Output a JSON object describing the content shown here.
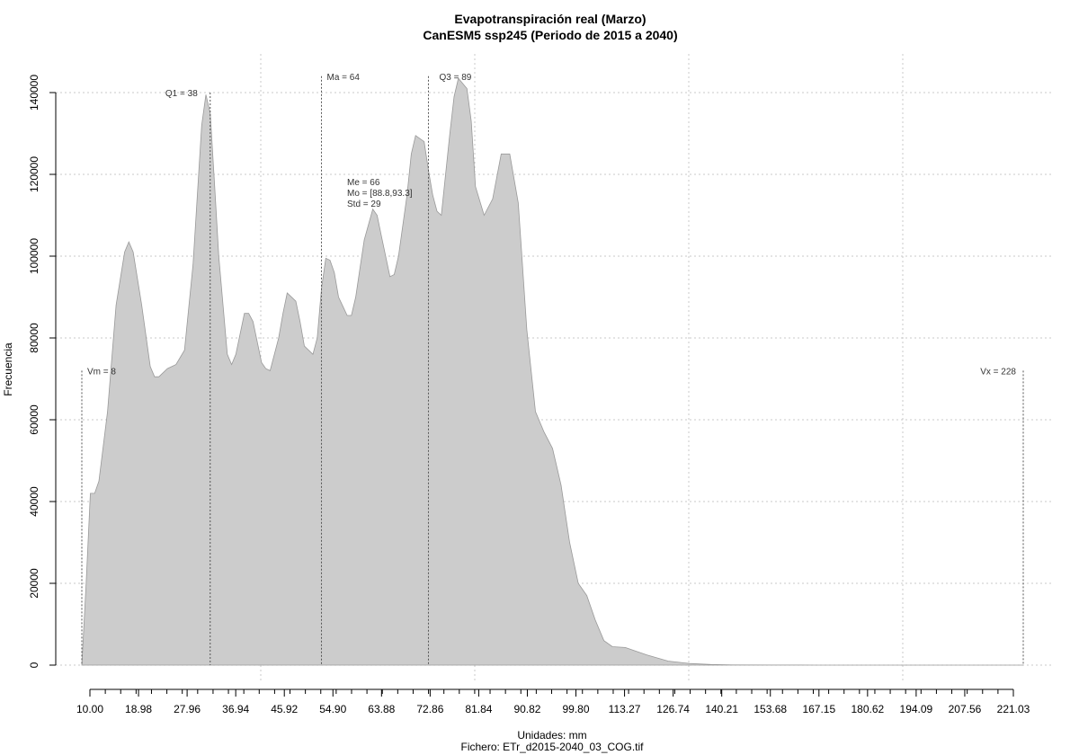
{
  "chart_data": {
    "type": "area",
    "title": "Evapotranspiración real (Marzo)",
    "subtitle": "CanESM5 ssp245 (Periodo de 2015 a 2040)",
    "xlabel": "Unidades: mm",
    "ylabel": "Frecuencia",
    "caption": "Fichero: ETr_d2015-2040_03_COG.tif",
    "xlim": [
      8,
      228
    ],
    "ylim": [
      0,
      140000
    ],
    "x_tick_labels": [
      "10.00",
      "18.98",
      "27.96",
      "36.94",
      "45.92",
      "54.90",
      "63.88",
      "72.86",
      "81.84",
      "90.82",
      "99.80",
      "113.27",
      "126.74",
      "140.21",
      "153.68",
      "167.15",
      "180.62",
      "194.09",
      "207.56",
      "221.03"
    ],
    "y_ticks": [
      0,
      20000,
      40000,
      60000,
      80000,
      100000,
      120000,
      140000
    ],
    "y_tick_labels": [
      "0",
      "20000",
      "40000",
      "60000",
      "80000",
      "100000",
      "120000",
      "140000"
    ],
    "grid": true,
    "fill_color": "#cccccc",
    "line_color": "#999999",
    "series": [
      {
        "x": [
          8,
          9,
          10,
          11,
          12,
          14,
          16,
          18,
          19,
          20,
          22,
          24,
          25,
          26,
          28,
          30,
          32,
          34,
          36,
          37,
          38,
          39,
          40,
          42,
          43,
          44,
          46,
          47,
          48,
          50,
          51,
          52,
          54,
          55,
          56,
          58,
          59,
          60,
          62,
          63,
          64,
          65,
          66,
          67,
          68,
          70,
          71,
          72,
          73,
          74,
          76,
          77,
          78,
          80,
          81,
          82,
          84,
          85,
          86,
          88,
          89,
          90,
          91,
          92,
          94,
          95,
          96,
          98,
          99,
          100,
          102,
          104,
          106,
          108,
          110,
          112,
          114,
          116,
          118,
          120,
          122,
          124,
          126,
          128,
          130,
          132,
          135,
          140,
          145,
          150,
          155,
          160,
          170,
          180,
          190,
          200,
          210,
          220,
          228
        ],
        "y": [
          0,
          20000,
          42000,
          42000,
          45000,
          62000,
          88000,
          101000,
          103500,
          101000,
          88000,
          73000,
          70500,
          70500,
          72500,
          73500,
          77000,
          98000,
          132000,
          139500,
          135000,
          118000,
          100000,
          76000,
          73500,
          76000,
          86000,
          86000,
          84000,
          74000,
          72500,
          72000,
          80000,
          86000,
          91000,
          89000,
          84000,
          78000,
          76000,
          80000,
          92000,
          99500,
          99000,
          96000,
          90000,
          85500,
          85500,
          90000,
          97000,
          104000,
          111500,
          110000,
          105000,
          95000,
          95500,
          100000,
          115000,
          125000,
          129500,
          128000,
          121000,
          115000,
          111000,
          110000,
          130000,
          139000,
          143500,
          141000,
          133000,
          117000,
          110000,
          114000,
          125000,
          125000,
          113000,
          82000,
          62000,
          57000,
          53000,
          44000,
          30000,
          20000,
          17000,
          11000,
          6000,
          4500,
          4300,
          2500,
          1000,
          400,
          150,
          50,
          20,
          10,
          5,
          3,
          2,
          1,
          0
        ]
      }
    ],
    "annotations": [
      {
        "key": "vm",
        "label": "Vm = 8",
        "x": 8,
        "y": 72000
      },
      {
        "key": "q1",
        "label": "Q1 = 38",
        "x": 38,
        "y": 140000
      },
      {
        "key": "ma",
        "label": "Ma = 64",
        "x": 64,
        "y": 144000
      },
      {
        "key": "q3",
        "label": "Q3 = 89",
        "x": 89,
        "y": 144000
      },
      {
        "key": "vx",
        "label": "Vx = 228",
        "x": 228,
        "y": 72000
      }
    ],
    "stats_text": [
      "Me = 66",
      "Mo = [88.8,93.3]",
      "Std = 29"
    ]
  }
}
